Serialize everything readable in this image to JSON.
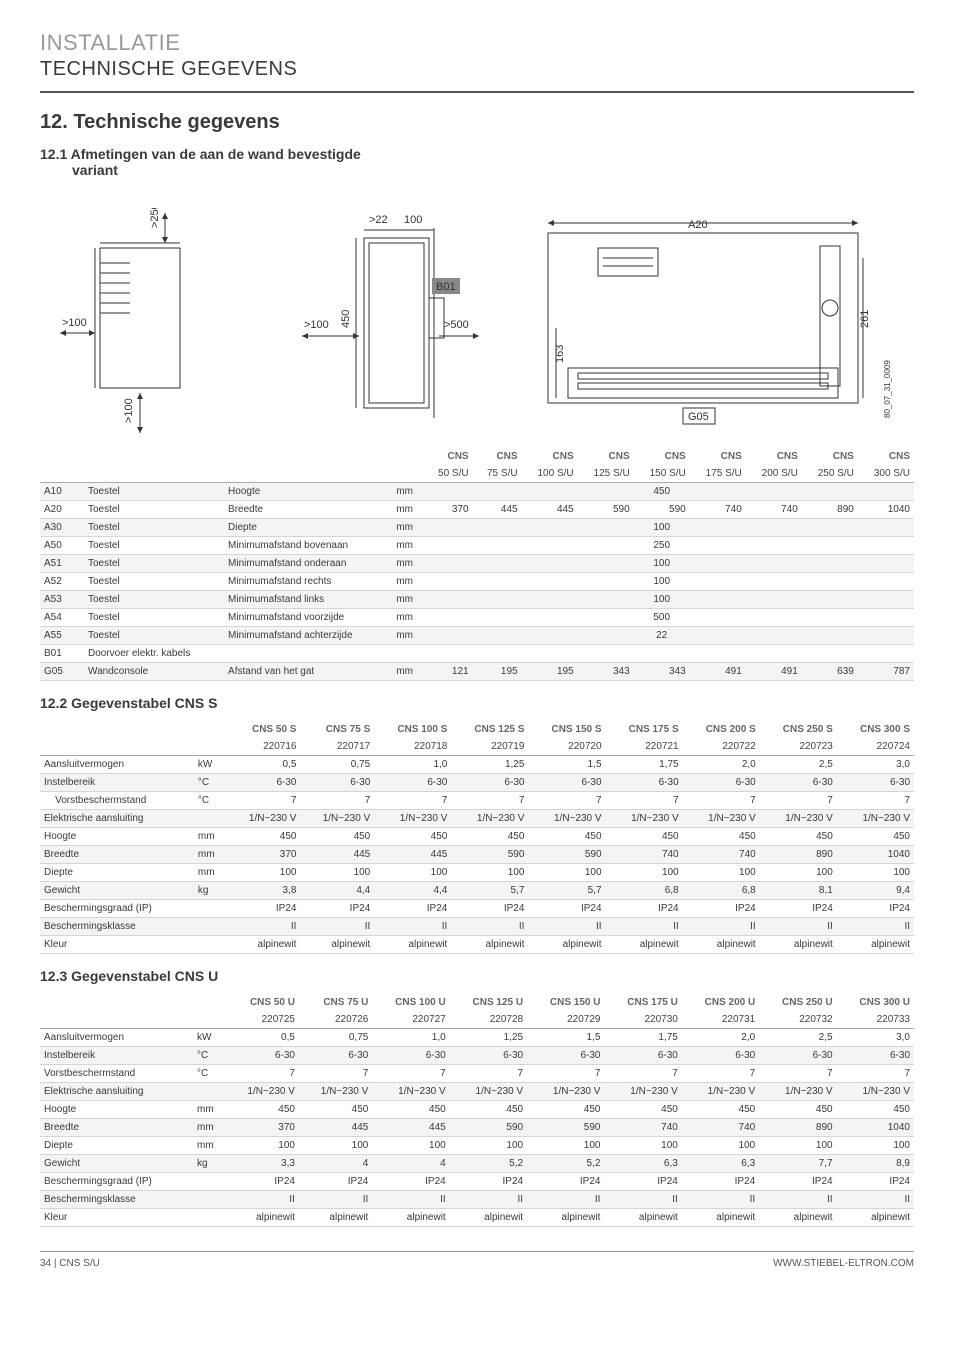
{
  "header": {
    "pre_title": "INSTALLATIE",
    "sub_title": "TECHNISCHE GEGEVENS"
  },
  "section": {
    "num": "12.",
    "title": "Technische gegevens"
  },
  "sub_dim": {
    "num": "12.1",
    "title_line1": "Afmetingen van de aan de wand bevestigde",
    "title_line2": "variant"
  },
  "diagram": {
    "panel1": {
      "gt250": ">250",
      "gt100_left": ">100",
      "gt100_bottom": ">100"
    },
    "panel2": {
      "gt100": ">100",
      "gt22": ">22",
      "d100": "100",
      "d450": "450",
      "d500": ">500",
      "b01": "B01"
    },
    "panel3": {
      "d163": "163",
      "a20": "A20",
      "d261": "261",
      "g05": "G05",
      "code": "80_07_31_0009"
    }
  },
  "dim_table": {
    "header_top": [
      "",
      "",
      "",
      "",
      "CNS",
      "CNS",
      "CNS",
      "CNS",
      "CNS",
      "CNS",
      "CNS",
      "CNS",
      "CNS"
    ],
    "header_bot": [
      "",
      "",
      "",
      "",
      "50 S/U",
      "75 S/U",
      "100 S/U",
      "125 S/U",
      "150 S/U",
      "175 S/U",
      "200 S/U",
      "250 S/U",
      "300 S/U"
    ],
    "rows": [
      {
        "code": "A10",
        "c1": "Toestel",
        "c2": "Hoogte",
        "unit": "mm",
        "vals": [
          "",
          "",
          "",
          "",
          "450",
          "",
          "",
          "",
          ""
        ]
      },
      {
        "code": "A20",
        "c1": "Toestel",
        "c2": "Breedte",
        "unit": "mm",
        "vals": [
          "370",
          "445",
          "445",
          "590",
          "590",
          "740",
          "740",
          "890",
          "1040"
        ]
      },
      {
        "code": "A30",
        "c1": "Toestel",
        "c2": "Diepte",
        "unit": "mm",
        "vals": [
          "",
          "",
          "",
          "",
          "100",
          "",
          "",
          "",
          ""
        ]
      },
      {
        "code": "A50",
        "c1": "Toestel",
        "c2": "Minimumafstand bovenaan",
        "unit": "mm",
        "vals": [
          "",
          "",
          "",
          "",
          "250",
          "",
          "",
          "",
          ""
        ]
      },
      {
        "code": "A51",
        "c1": "Toestel",
        "c2": "Minimumafstand onderaan",
        "unit": "mm",
        "vals": [
          "",
          "",
          "",
          "",
          "100",
          "",
          "",
          "",
          ""
        ]
      },
      {
        "code": "A52",
        "c1": "Toestel",
        "c2": "Minimumafstand rechts",
        "unit": "mm",
        "vals": [
          "",
          "",
          "",
          "",
          "100",
          "",
          "",
          "",
          ""
        ]
      },
      {
        "code": "A53",
        "c1": "Toestel",
        "c2": "Minimumafstand links",
        "unit": "mm",
        "vals": [
          "",
          "",
          "",
          "",
          "100",
          "",
          "",
          "",
          ""
        ]
      },
      {
        "code": "A54",
        "c1": "Toestel",
        "c2": "Minimumafstand voorzijde",
        "unit": "mm",
        "vals": [
          "",
          "",
          "",
          "",
          "500",
          "",
          "",
          "",
          ""
        ]
      },
      {
        "code": "A55",
        "c1": "Toestel",
        "c2": "Minimumafstand achterzijde",
        "unit": "mm",
        "vals": [
          "",
          "",
          "",
          "",
          "22",
          "",
          "",
          "",
          ""
        ]
      },
      {
        "code": "B01",
        "c1": "Doorvoer elektr. kabels",
        "c2": "",
        "unit": "",
        "vals": [
          "",
          "",
          "",
          "",
          "",
          "",
          "",
          "",
          ""
        ]
      },
      {
        "code": "G05",
        "c1": "Wandconsole",
        "c2": "Afstand van het gat",
        "unit": "mm",
        "vals": [
          "121",
          "195",
          "195",
          "343",
          "343",
          "491",
          "491",
          "639",
          "787"
        ]
      }
    ]
  },
  "sub_s": {
    "num": "12.2",
    "title": "Gegevenstabel CNS S"
  },
  "table_s": {
    "header_top": [
      "",
      "",
      "CNS 50 S",
      "CNS 75 S",
      "CNS 100 S",
      "CNS 125 S",
      "CNS 150 S",
      "CNS 175 S",
      "CNS 200 S",
      "CNS 250 S",
      "CNS 300 S"
    ],
    "header_bot": [
      "",
      "",
      "220716",
      "220717",
      "220718",
      "220719",
      "220720",
      "220721",
      "220722",
      "220723",
      "220724"
    ],
    "rows": [
      {
        "name": "Aansluitvermogen",
        "sub": "",
        "unit": "kW",
        "vals": [
          "0,5",
          "0,75",
          "1,0",
          "1,25",
          "1,5",
          "1,75",
          "2,0",
          "2,5",
          "3,0"
        ]
      },
      {
        "name": "Instelbereik",
        "sub": "",
        "unit": "°C",
        "vals": [
          "6-30",
          "6-30",
          "6-30",
          "6-30",
          "6-30",
          "6-30",
          "6-30",
          "6-30",
          "6-30"
        ]
      },
      {
        "name": "",
        "sub": "Vorstbeschermstand",
        "unit": "°C",
        "vals": [
          "7",
          "7",
          "7",
          "7",
          "7",
          "7",
          "7",
          "7",
          "7"
        ]
      },
      {
        "name": "Elektrische aansluiting",
        "sub": "",
        "unit": "",
        "vals": [
          "1/N~230 V",
          "1/N~230 V",
          "1/N~230 V",
          "1/N~230 V",
          "1/N~230 V",
          "1/N~230 V",
          "1/N~230 V",
          "1/N~230 V",
          "1/N~230 V"
        ]
      },
      {
        "name": "Hoogte",
        "sub": "",
        "unit": "mm",
        "vals": [
          "450",
          "450",
          "450",
          "450",
          "450",
          "450",
          "450",
          "450",
          "450"
        ]
      },
      {
        "name": "Breedte",
        "sub": "",
        "unit": "mm",
        "vals": [
          "370",
          "445",
          "445",
          "590",
          "590",
          "740",
          "740",
          "890",
          "1040"
        ]
      },
      {
        "name": "Diepte",
        "sub": "",
        "unit": "mm",
        "vals": [
          "100",
          "100",
          "100",
          "100",
          "100",
          "100",
          "100",
          "100",
          "100"
        ]
      },
      {
        "name": "Gewicht",
        "sub": "",
        "unit": "kg",
        "vals": [
          "3,8",
          "4,4",
          "4,4",
          "5,7",
          "5,7",
          "6,8",
          "6,8",
          "8,1",
          "9,4"
        ]
      },
      {
        "name": "Beschermingsgraad (IP)",
        "sub": "",
        "unit": "",
        "vals": [
          "IP24",
          "IP24",
          "IP24",
          "IP24",
          "IP24",
          "IP24",
          "IP24",
          "IP24",
          "IP24"
        ]
      },
      {
        "name": "Beschermingsklasse",
        "sub": "",
        "unit": "",
        "vals": [
          "II",
          "II",
          "II",
          "II",
          "II",
          "II",
          "II",
          "II",
          "II"
        ]
      },
      {
        "name": "Kleur",
        "sub": "",
        "unit": "",
        "vals": [
          "alpinewit",
          "alpinewit",
          "alpinewit",
          "alpinewit",
          "alpinewit",
          "alpinewit",
          "alpinewit",
          "alpinewit",
          "alpinewit"
        ]
      }
    ]
  },
  "sub_u": {
    "num": "12.3",
    "title": "Gegevenstabel CNS U"
  },
  "table_u": {
    "header_top": [
      "",
      "",
      "CNS 50 U",
      "CNS 75 U",
      "CNS 100 U",
      "CNS 125 U",
      "CNS 150 U",
      "CNS 175 U",
      "CNS 200 U",
      "CNS 250 U",
      "CNS 300 U"
    ],
    "header_bot": [
      "",
      "",
      "220725",
      "220726",
      "220727",
      "220728",
      "220729",
      "220730",
      "220731",
      "220732",
      "220733"
    ],
    "rows": [
      {
        "name": "Aansluitvermogen",
        "sub": "",
        "unit": "kW",
        "vals": [
          "0,5",
          "0,75",
          "1,0",
          "1,25",
          "1,5",
          "1,75",
          "2,0",
          "2,5",
          "3,0"
        ]
      },
      {
        "name": "Instelbereik",
        "sub": "",
        "unit": "°C",
        "vals": [
          "6-30",
          "6-30",
          "6-30",
          "6-30",
          "6-30",
          "6-30",
          "6-30",
          "6-30",
          "6-30"
        ]
      },
      {
        "name": "Vorstbeschermstand",
        "sub": "",
        "unit": "°C",
        "vals": [
          "7",
          "7",
          "7",
          "7",
          "7",
          "7",
          "7",
          "7",
          "7"
        ]
      },
      {
        "name": "Elektrische aansluiting",
        "sub": "",
        "unit": "",
        "vals": [
          "1/N~230 V",
          "1/N~230 V",
          "1/N~230 V",
          "1/N~230 V",
          "1/N~230 V",
          "1/N~230 V",
          "1/N~230 V",
          "1/N~230 V",
          "1/N~230 V"
        ]
      },
      {
        "name": "Hoogte",
        "sub": "",
        "unit": "mm",
        "vals": [
          "450",
          "450",
          "450",
          "450",
          "450",
          "450",
          "450",
          "450",
          "450"
        ]
      },
      {
        "name": "Breedte",
        "sub": "",
        "unit": "mm",
        "vals": [
          "370",
          "445",
          "445",
          "590",
          "590",
          "740",
          "740",
          "890",
          "1040"
        ]
      },
      {
        "name": "Diepte",
        "sub": "",
        "unit": "mm",
        "vals": [
          "100",
          "100",
          "100",
          "100",
          "100",
          "100",
          "100",
          "100",
          "100"
        ]
      },
      {
        "name": "Gewicht",
        "sub": "",
        "unit": "kg",
        "vals": [
          "3,3",
          "4",
          "4",
          "5,2",
          "5,2",
          "6,3",
          "6,3",
          "7,7",
          "8,9"
        ]
      },
      {
        "name": "Beschermingsgraad (IP)",
        "sub": "",
        "unit": "",
        "vals": [
          "IP24",
          "IP24",
          "IP24",
          "IP24",
          "IP24",
          "IP24",
          "IP24",
          "IP24",
          "IP24"
        ]
      },
      {
        "name": "Beschermingsklasse",
        "sub": "",
        "unit": "",
        "vals": [
          "II",
          "II",
          "II",
          "II",
          "II",
          "II",
          "II",
          "II",
          "II"
        ]
      },
      {
        "name": "Kleur",
        "sub": "",
        "unit": "",
        "vals": [
          "alpinewit",
          "alpinewit",
          "alpinewit",
          "alpinewit",
          "alpinewit",
          "alpinewit",
          "alpinewit",
          "alpinewit",
          "alpinewit"
        ]
      }
    ]
  },
  "footer": {
    "left": "34 | CNS S/U",
    "right": "WWW.STIEBEL-ELTRON.COM"
  }
}
